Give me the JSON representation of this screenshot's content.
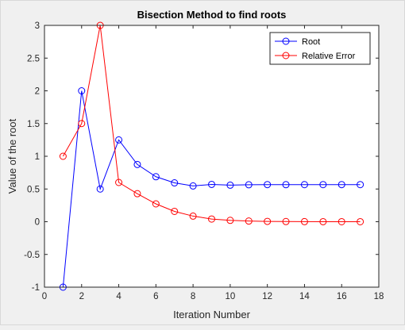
{
  "chart_data": {
    "type": "line",
    "title": "Bisection Method to find roots",
    "xlabel": "Iteration Number",
    "ylabel": "Value of the root",
    "xlim": [
      0,
      18
    ],
    "ylim": [
      -1,
      3
    ],
    "xticks": [
      0,
      2,
      4,
      6,
      8,
      10,
      12,
      14,
      16,
      18
    ],
    "yticks": [
      -1,
      -0.5,
      0,
      0.5,
      1,
      1.5,
      2,
      2.5,
      3
    ],
    "grid": false,
    "legend_position": "top-right",
    "x": [
      1,
      2,
      3,
      4,
      5,
      6,
      7,
      8,
      9,
      10,
      11,
      12,
      13,
      14,
      15,
      16,
      17
    ],
    "series": [
      {
        "name": "Root",
        "color": "#0000ff",
        "marker": "circle",
        "values": [
          -1,
          2,
          0.5,
          1.25,
          0.875,
          0.6875,
          0.59375,
          0.546875,
          0.5703125,
          0.5585938,
          0.5644531,
          0.5673828,
          0.565918,
          0.5666504,
          0.5670166,
          0.5671997,
          0.5671082
        ]
      },
      {
        "name": "Relative Error",
        "color": "#ff0000",
        "marker": "circle",
        "values": [
          1,
          1.5,
          3,
          0.6,
          0.4286,
          0.2727,
          0.1579,
          0.0857,
          0.0411,
          0.021,
          0.0104,
          0.0052,
          0.0026,
          0.0013,
          0.0006,
          0.0003,
          0.0002
        ]
      }
    ]
  }
}
